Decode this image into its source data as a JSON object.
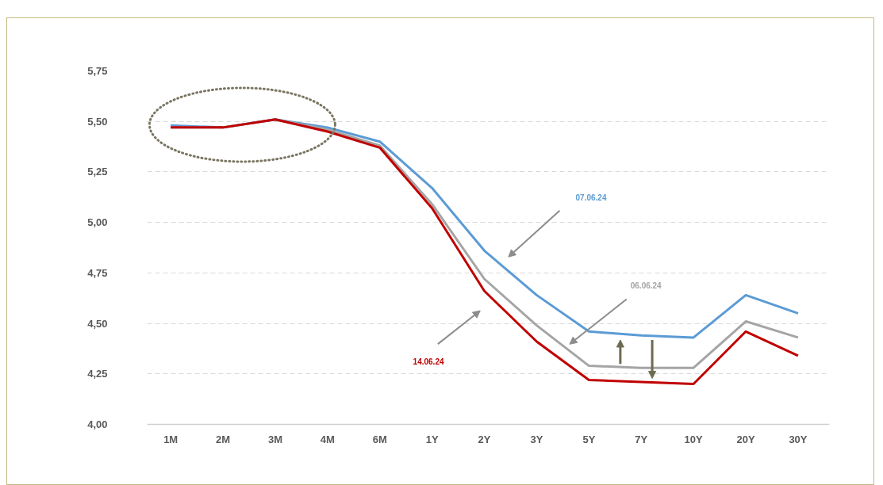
{
  "chart_data": {
    "type": "line",
    "categories": [
      "1M",
      "2M",
      "3M",
      "4M",
      "6M",
      "1Y",
      "2Y",
      "3Y",
      "5Y",
      "7Y",
      "10Y",
      "20Y",
      "30Y"
    ],
    "series": [
      {
        "name": "07.06.24",
        "color": "#5b9bd5",
        "values": [
          5.48,
          5.47,
          5.51,
          5.47,
          5.4,
          5.17,
          4.86,
          4.64,
          4.46,
          4.44,
          4.43,
          4.64,
          4.55
        ]
      },
      {
        "name": "06.06.24",
        "color": "#a5a5a5",
        "values": [
          5.47,
          5.47,
          5.51,
          5.46,
          5.38,
          5.09,
          4.72,
          4.49,
          4.29,
          4.28,
          4.28,
          4.51,
          4.43
        ]
      },
      {
        "name": "14.06.24",
        "color": "#c00000",
        "values": [
          5.47,
          5.47,
          5.51,
          5.45,
          5.37,
          5.07,
          4.66,
          4.41,
          4.22,
          4.21,
          4.2,
          4.46,
          4.34
        ]
      }
    ],
    "ylim": [
      4.0,
      5.75
    ],
    "yticks": [
      {
        "value": 4.0,
        "label": "4,00"
      },
      {
        "value": 4.25,
        "label": "4,25"
      },
      {
        "value": 4.5,
        "label": "4,50"
      },
      {
        "value": 4.75,
        "label": "4,75"
      },
      {
        "value": 5.0,
        "label": "5,00"
      },
      {
        "value": 5.25,
        "label": "5,25"
      },
      {
        "value": 5.5,
        "label": "5,50"
      },
      {
        "value": 5.75,
        "label": "5,75"
      }
    ],
    "grid": "y"
  }
}
